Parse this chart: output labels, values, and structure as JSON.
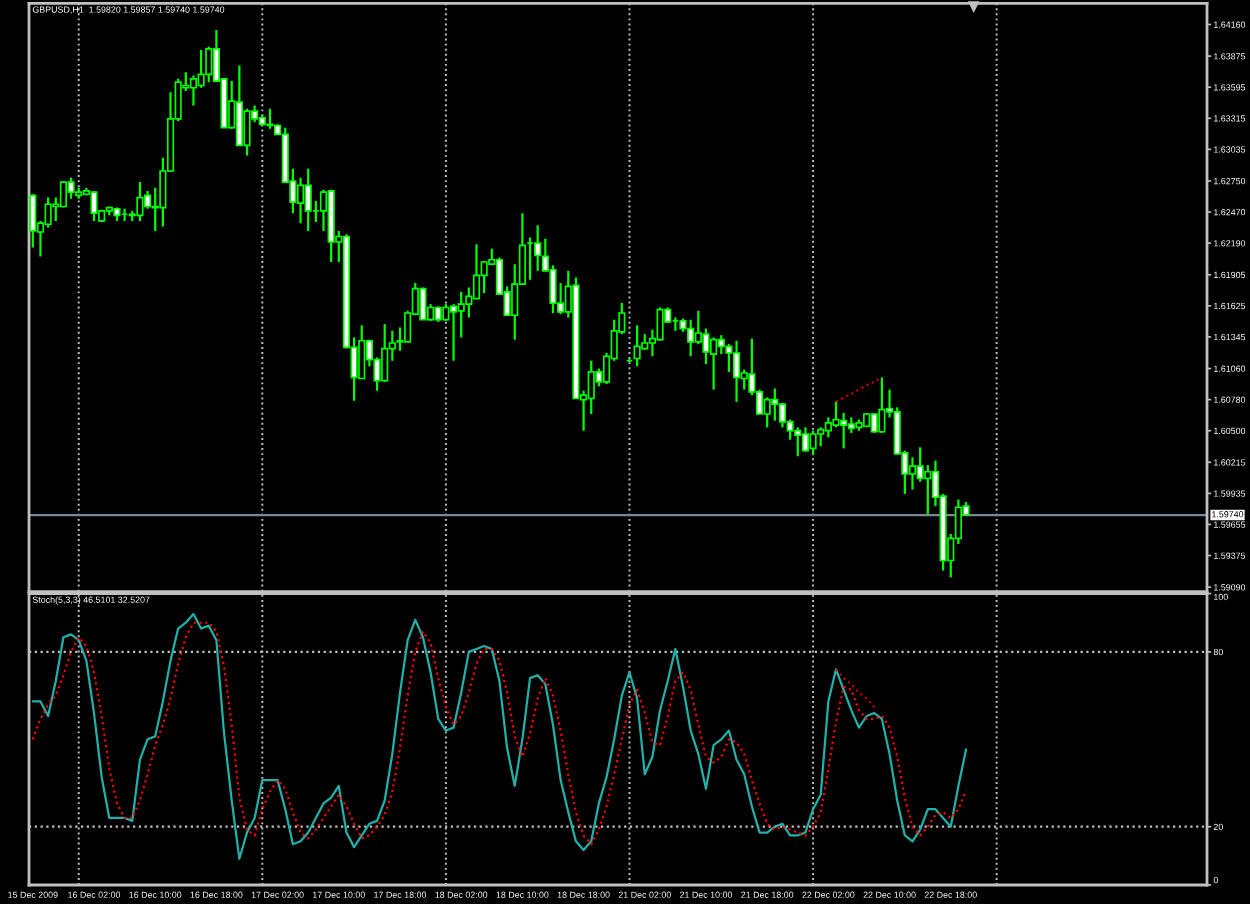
{
  "chart_data": [
    {
      "type": "candlestick",
      "title": "GBPUSD,H1  1.59820 1.59857 1.59740 1.59740",
      "categories": [
        null,
        null,
        null,
        null,
        null,
        null,
        null,
        null,
        null,
        null,
        null,
        null,
        null,
        null,
        null,
        null,
        null,
        null,
        null,
        null,
        null,
        null,
        null,
        null,
        null,
        null,
        null,
        null,
        null,
        null,
        null,
        null,
        null,
        null,
        null,
        null,
        null,
        null,
        null,
        null,
        null,
        null,
        null,
        null,
        null,
        null,
        null,
        null,
        null,
        null,
        null,
        null,
        null,
        null,
        null,
        null,
        null,
        null,
        null,
        null,
        null,
        null,
        null,
        null,
        null,
        null,
        null,
        null,
        null,
        null,
        null,
        null,
        null,
        null,
        null,
        null,
        null,
        null,
        null,
        null,
        null,
        null,
        null,
        null,
        null,
        null,
        null,
        null,
        null,
        null,
        null,
        null,
        null,
        null,
        null,
        null,
        null,
        null,
        null,
        null,
        null,
        null,
        null,
        null,
        null,
        null,
        null,
        null,
        null,
        null,
        null,
        null,
        null,
        null,
        null,
        null,
        null,
        null,
        null,
        null,
        null,
        null,
        null,
        null,
        null,
        null,
        null,
        null,
        null,
        null,
        null,
        null,
        null,
        null,
        null,
        null,
        null,
        null,
        null,
        null,
        null,
        null,
        null,
        null,
        null,
        null,
        null,
        null,
        null,
        null,
        null,
        null,
        null,
        null
      ],
      "ohlc": [
        [
          1.6262,
          1.6263,
          1.6215,
          1.623
        ],
        [
          1.6229,
          1.6239,
          1.6207,
          1.6237
        ],
        [
          1.6236,
          1.626,
          1.6233,
          1.6254
        ],
        [
          1.6252,
          1.626,
          1.6239,
          1.6254
        ],
        [
          1.6252,
          1.6275,
          1.6251,
          1.6274
        ],
        [
          1.6274,
          1.6278,
          1.6259,
          1.6265
        ],
        [
          1.6262,
          1.6269,
          1.6259,
          1.6265
        ],
        [
          1.6263,
          1.6269,
          1.6262,
          1.6266
        ],
        [
          1.6265,
          1.6266,
          1.6239,
          1.6246
        ],
        [
          1.6239,
          1.6249,
          1.6238,
          1.6248
        ],
        [
          1.6248,
          1.6252,
          1.6244,
          1.6251
        ],
        [
          1.625,
          1.6251,
          1.6239,
          1.6244
        ],
        [
          1.6245,
          1.625,
          1.6239,
          1.6245
        ],
        [
          1.6244,
          1.6248,
          1.6239,
          1.6245
        ],
        [
          1.6244,
          1.6274,
          1.6239,
          1.626
        ],
        [
          1.6262,
          1.6266,
          1.625,
          1.6252
        ],
        [
          1.6251,
          1.6269,
          1.623,
          1.6252
        ],
        [
          1.6251,
          1.6296,
          1.6234,
          1.6284
        ],
        [
          1.6284,
          1.6355,
          1.6283,
          1.6331
        ],
        [
          1.6331,
          1.6367,
          1.6329,
          1.6364
        ],
        [
          1.6359,
          1.6373,
          1.6356,
          1.6361
        ],
        [
          1.6359,
          1.637,
          1.6343,
          1.6367
        ],
        [
          1.6361,
          1.6393,
          1.6359,
          1.6371
        ],
        [
          1.6371,
          1.6396,
          1.6364,
          1.6394
        ],
        [
          1.6394,
          1.6411,
          1.6364,
          1.6365
        ],
        [
          1.6367,
          1.6368,
          1.6323,
          1.6323
        ],
        [
          1.6323,
          1.6365,
          1.6322,
          1.6347
        ],
        [
          1.6346,
          1.6379,
          1.6307,
          1.6307
        ],
        [
          1.6307,
          1.634,
          1.6298,
          1.6338
        ],
        [
          1.6338,
          1.6343,
          1.6328,
          1.6331
        ],
        [
          1.6332,
          1.6335,
          1.6325,
          1.6326
        ],
        [
          1.6326,
          1.634,
          1.6322,
          1.6325
        ],
        [
          1.6325,
          1.6326,
          1.6317,
          1.6317
        ],
        [
          1.6317,
          1.6323,
          1.6274,
          1.6274
        ],
        [
          1.6275,
          1.6286,
          1.6246,
          1.6256
        ],
        [
          1.6255,
          1.6278,
          1.6237,
          1.6271
        ],
        [
          1.6271,
          1.6286,
          1.623,
          1.6248
        ],
        [
          1.6248,
          1.6257,
          1.6238,
          1.6248
        ],
        [
          1.6248,
          1.6267,
          1.623,
          1.6265
        ],
        [
          1.6266,
          1.6267,
          1.6202,
          1.622
        ],
        [
          1.622,
          1.623,
          1.6202,
          1.6225
        ],
        [
          1.6225,
          1.6227,
          1.6124,
          1.6125
        ],
        [
          1.6125,
          1.6134,
          1.6077,
          1.6098
        ],
        [
          1.6097,
          1.6145,
          1.6097,
          1.6131
        ],
        [
          1.6131,
          1.6132,
          1.6108,
          1.6114
        ],
        [
          1.6114,
          1.6116,
          1.6086,
          1.6095
        ],
        [
          1.6095,
          1.6146,
          1.6094,
          1.6124
        ],
        [
          1.6124,
          1.614,
          1.6113,
          1.6129
        ],
        [
          1.613,
          1.6143,
          1.6122,
          1.6131
        ],
        [
          1.613,
          1.6158,
          1.613,
          1.6156
        ],
        [
          1.6155,
          1.6183,
          1.6154,
          1.6178
        ],
        [
          1.6178,
          1.6179,
          1.615,
          1.615
        ],
        [
          1.615,
          1.6164,
          1.6149,
          1.6161
        ],
        [
          1.6161,
          1.6162,
          1.6148,
          1.615
        ],
        [
          1.615,
          1.6164,
          1.6149,
          1.6161
        ],
        [
          1.6162,
          1.6164,
          1.6113,
          1.6157
        ],
        [
          1.6158,
          1.6175,
          1.6134,
          1.6164
        ],
        [
          1.6164,
          1.6179,
          1.6152,
          1.6171
        ],
        [
          1.6169,
          1.6218,
          1.6169,
          1.619
        ],
        [
          1.619,
          1.6203,
          1.6174,
          1.6202
        ],
        [
          1.62,
          1.6214,
          1.62,
          1.6204
        ],
        [
          1.6204,
          1.6206,
          1.6173,
          1.6173
        ],
        [
          1.6175,
          1.618,
          1.6154,
          1.6154
        ],
        [
          1.6154,
          1.62,
          1.6132,
          1.6182
        ],
        [
          1.6182,
          1.6246,
          1.6182,
          1.6217
        ],
        [
          1.6219,
          1.6224,
          1.6186,
          1.6219
        ],
        [
          1.6219,
          1.6235,
          1.6194,
          1.6208
        ],
        [
          1.6207,
          1.6223,
          1.6194,
          1.6194
        ],
        [
          1.6195,
          1.6199,
          1.6156,
          1.6165
        ],
        [
          1.6165,
          1.6183,
          1.6155,
          1.6157
        ],
        [
          1.6157,
          1.6194,
          1.6152,
          1.618
        ],
        [
          1.6181,
          1.6188,
          1.6079,
          1.6079
        ],
        [
          1.6078,
          1.6086,
          1.605,
          1.6082
        ],
        [
          1.6079,
          1.6113,
          1.6065,
          1.6103
        ],
        [
          1.6103,
          1.6106,
          1.609,
          1.6094
        ],
        [
          1.6094,
          1.612,
          1.6092,
          1.6117
        ],
        [
          1.6115,
          1.615,
          1.6113,
          1.614
        ],
        [
          1.6139,
          1.6165,
          1.6137,
          1.6156
        ],
        [
          1.6113,
          1.6115,
          1.6112,
          1.6113
        ],
        [
          1.6115,
          1.6145,
          1.6108,
          1.6126
        ],
        [
          1.6124,
          1.6137,
          1.6123,
          1.6129
        ],
        [
          1.6129,
          1.6141,
          1.6117,
          1.6133
        ],
        [
          1.6132,
          1.6161,
          1.6131,
          1.6159
        ],
        [
          1.6159,
          1.6161,
          1.6147,
          1.6148
        ],
        [
          1.6149,
          1.6152,
          1.614,
          1.6149
        ],
        [
          1.6149,
          1.6151,
          1.6139,
          1.6142
        ],
        [
          1.6142,
          1.615,
          1.6117,
          1.613
        ],
        [
          1.613,
          1.6158,
          1.6128,
          1.6138
        ],
        [
          1.6137,
          1.6142,
          1.611,
          1.6121
        ],
        [
          1.6119,
          1.6134,
          1.6087,
          1.6132
        ],
        [
          1.6132,
          1.6136,
          1.6119,
          1.6126
        ],
        [
          1.6126,
          1.6128,
          1.6103,
          1.612
        ],
        [
          1.612,
          1.6131,
          1.6076,
          1.6098
        ],
        [
          1.6097,
          1.6105,
          1.6087,
          1.6102
        ],
        [
          1.6101,
          1.6133,
          1.6082,
          1.6085
        ],
        [
          1.6085,
          1.6087,
          1.6065,
          1.6065
        ],
        [
          1.6065,
          1.608,
          1.6053,
          1.6078
        ],
        [
          1.6078,
          1.6088,
          1.6059,
          1.6074
        ],
        [
          1.6074,
          1.6075,
          1.6053,
          1.6058
        ],
        [
          1.6058,
          1.606,
          1.6042,
          1.605
        ],
        [
          1.605,
          1.6053,
          1.6027,
          1.6046
        ],
        [
          1.6047,
          1.6053,
          1.6031,
          1.6032
        ],
        [
          1.6034,
          1.605,
          1.6028,
          1.6047
        ],
        [
          1.6047,
          1.6053,
          1.6036,
          1.6051
        ],
        [
          1.605,
          1.6062,
          1.6044,
          1.6057
        ],
        [
          1.6055,
          1.6076,
          1.6053,
          1.606
        ],
        [
          1.6059,
          1.6066,
          1.6034,
          1.6055
        ],
        [
          1.6056,
          1.6062,
          1.6048,
          1.6052
        ],
        [
          1.6053,
          1.606,
          1.605,
          1.6057
        ],
        [
          1.6054,
          1.6066,
          1.6053,
          1.6065
        ],
        [
          1.6065,
          1.6066,
          1.6048,
          1.6049
        ],
        [
          1.6049,
          1.6098,
          1.6048,
          1.6069
        ],
        [
          1.607,
          1.6087,
          1.6062,
          1.6067
        ],
        [
          1.6067,
          1.6071,
          1.6029,
          1.6029
        ],
        [
          1.603,
          1.6032,
          1.5993,
          1.6011
        ],
        [
          1.6011,
          1.6026,
          1.5997,
          1.6018
        ],
        [
          1.6018,
          1.6035,
          1.6004,
          1.6007
        ],
        [
          1.6007,
          1.6019,
          1.5975,
          1.6013
        ],
        [
          1.6013,
          1.6023,
          1.5982,
          1.599
        ],
        [
          1.5991,
          1.5993,
          1.5924,
          1.5933
        ],
        [
          1.5933,
          1.5957,
          1.5918,
          1.5953
        ],
        [
          1.5953,
          1.5988,
          1.5948,
          1.5981
        ],
        [
          1.5982,
          1.59857,
          1.5974,
          1.5974
        ],
        null,
        null,
        null,
        null,
        null,
        null,
        null,
        null,
        null,
        null,
        null,
        null,
        null,
        null,
        null,
        null,
        null,
        null,
        null,
        null,
        null,
        null,
        null,
        null,
        null,
        null,
        null,
        null,
        null,
        null,
        null
      ],
      "color": "#00ff00",
      "colors": [
        "#ffffff",
        "#000000",
        "#000000",
        "#000000",
        "#000000",
        "#ffffff",
        "#000000",
        "#000000",
        "#ffffff",
        "#000000",
        "#000000",
        "#ffffff",
        "#00ff00",
        "#000000",
        "#000000",
        "#ffffff",
        "#000000",
        "#000000",
        "#000000",
        "#000000",
        "#000000",
        "#000000",
        "#000000",
        "#000000",
        "#ffffff",
        "#ffffff",
        "#000000",
        "#ffffff",
        "#000000",
        "#ffffff",
        "#ffffff",
        "#ffffff",
        "#ffffff",
        "#ffffff",
        "#ffffff",
        "#000000",
        "#ffffff",
        "#00ff00",
        "#000000",
        "#ffffff",
        "#000000",
        "#ffffff",
        "#ffffff",
        "#000000",
        "#ffffff",
        "#ffffff",
        "#000000",
        "#000000",
        "#000000",
        "#000000",
        "#000000",
        "#ffffff",
        "#000000",
        "#ffffff",
        "#000000",
        "#ffffff",
        "#000000",
        "#000000",
        "#000000",
        "#000000",
        "#000000",
        "#ffffff",
        "#ffffff",
        "#000000",
        "#000000",
        "#00ff00",
        "#ffffff",
        "#ffffff",
        "#ffffff",
        "#ffffff",
        "#000000",
        "#ffffff",
        "#000000",
        "#000000",
        "#ffffff",
        "#000000",
        "#000000",
        "#000000",
        "#00ff00",
        "#000000",
        "#000000",
        "#000000",
        "#000000",
        "#ffffff",
        "#00ff00",
        "#ffffff",
        "#ffffff",
        "#000000",
        "#ffffff",
        "#000000",
        "#ffffff",
        "#ffffff",
        "#ffffff",
        "#000000",
        "#ffffff",
        "#ffffff",
        "#000000",
        "#ffffff",
        "#ffffff",
        "#ffffff",
        "#ffffff",
        "#ffffff",
        "#000000",
        "#000000",
        "#000000",
        "#000000",
        "#ffffff",
        "#ffffff",
        "#000000",
        "#000000",
        "#ffffff",
        "#000000",
        "#ffffff",
        "#ffffff",
        "#ffffff",
        "#000000",
        "#ffffff",
        "#000000",
        "#ffffff",
        "#ffffff",
        "#000000",
        "#000000",
        "#ffffff",
        null,
        null,
        null,
        null,
        null,
        null,
        null,
        null,
        null,
        null,
        null,
        null,
        null,
        null,
        null,
        null,
        null,
        null,
        null,
        null,
        null,
        null,
        null,
        null,
        null,
        null,
        null,
        null,
        null,
        null,
        null
      ],
      "series": [
        {
          "type": "line",
          "color": "#c00000",
          "line_style": "dotted",
          "values": [
            null,
            null,
            null,
            null,
            null,
            null,
            null,
            null,
            null,
            null,
            null,
            null,
            null,
            null,
            null,
            null,
            null,
            null,
            null,
            null,
            null,
            null,
            null,
            null,
            null,
            null,
            null,
            null,
            null,
            null,
            null,
            null,
            null,
            null,
            null,
            null,
            null,
            null,
            null,
            null,
            null,
            null,
            null,
            null,
            null,
            null,
            null,
            null,
            null,
            null,
            null,
            null,
            null,
            null,
            null,
            null,
            null,
            null,
            null,
            null,
            null,
            null,
            null,
            null,
            null,
            null,
            null,
            null,
            null,
            null,
            null,
            null,
            null,
            null,
            null,
            null,
            null,
            null,
            null,
            null,
            null,
            null,
            null,
            null,
            null,
            null,
            null,
            null,
            null,
            null,
            null,
            null,
            null,
            null,
            null,
            null,
            null,
            null,
            null,
            null,
            null,
            null,
            null,
            null,
            null,
            1.6076,
            1.608,
            1.6083,
            1.6087,
            1.6091,
            1.6094,
            1.6098,
            null,
            null,
            null,
            null,
            null,
            null,
            null,
            null,
            null,
            null,
            null,
            null,
            null,
            null,
            null,
            null,
            null,
            null,
            null,
            null,
            null,
            null,
            null,
            null,
            null,
            null,
            null,
            null,
            null,
            null,
            null,
            null,
            null,
            null,
            null,
            null,
            null,
            null,
            null,
            null,
            null,
            null
          ]
        }
      ],
      "ylim": [
        1.5905,
        1.6435
      ],
      "yticks": [
        {
          "value": 1.6416,
          "label": "1.64160"
        },
        {
          "value": 1.63875,
          "label": "1.63875"
        },
        {
          "value": 1.63595,
          "label": "1.63595"
        },
        {
          "value": 1.63315,
          "label": "1.63315"
        },
        {
          "value": 1.63035,
          "label": "1.63035"
        },
        {
          "value": 1.6275,
          "label": "1.62750"
        },
        {
          "value": 1.6247,
          "label": "1.62470"
        },
        {
          "value": 1.6219,
          "label": "1.62190"
        },
        {
          "value": 1.61905,
          "label": "1.61905"
        },
        {
          "value": 1.61625,
          "label": "1.61625"
        },
        {
          "value": 1.61345,
          "label": "1.61345"
        },
        {
          "value": 1.6106,
          "label": "1.61060"
        },
        {
          "value": 1.6078,
          "label": "1.60780"
        },
        {
          "value": 1.605,
          "label": "1.60500"
        },
        {
          "value": 1.60215,
          "label": "1.60215"
        },
        {
          "value": 1.59935,
          "label": "1.59935"
        },
        {
          "value": 1.59655,
          "label": "1.59655"
        },
        {
          "value": 1.59375,
          "label": "1.59375"
        },
        {
          "value": 1.5909,
          "label": "1.59090"
        }
      ],
      "ref_lines": [
        {
          "axis": "y",
          "value": 1.5974,
          "label": "1.59740",
          "color": "#778899",
          "line_style": "solid"
        }
      ]
    },
    {
      "type": "line",
      "title": "Stoch(5,3,3) 46.5101 32.5207",
      "categories": [
        "15 Dec 2009",
        null,
        null,
        null,
        null,
        null,
        null,
        null,
        "16 Dec 02:00",
        null,
        null,
        null,
        null,
        null,
        null,
        null,
        "16 Dec 10:00",
        null,
        null,
        null,
        null,
        null,
        null,
        null,
        "16 Dec 18:00",
        null,
        null,
        null,
        null,
        null,
        null,
        null,
        "17 Dec 02:00",
        null,
        null,
        null,
        null,
        null,
        null,
        null,
        "17 Dec 10:00",
        null,
        null,
        null,
        null,
        null,
        null,
        null,
        "17 Dec 18:00",
        null,
        null,
        null,
        null,
        null,
        null,
        null,
        "18 Dec 02:00",
        null,
        null,
        null,
        null,
        null,
        null,
        null,
        "18 Dec 10:00",
        null,
        null,
        null,
        null,
        null,
        null,
        null,
        "18 Dec 18:00",
        null,
        null,
        null,
        null,
        null,
        null,
        null,
        "21 Dec 02:00",
        null,
        null,
        null,
        null,
        null,
        null,
        null,
        "21 Dec 10:00",
        null,
        null,
        null,
        null,
        null,
        null,
        null,
        "21 Dec 18:00",
        null,
        null,
        null,
        null,
        null,
        null,
        null,
        "22 Dec 02:00",
        null,
        null,
        null,
        null,
        null,
        null,
        null,
        "22 Dec 10:00",
        null,
        null,
        null,
        null,
        null,
        null,
        null,
        "22 Dec 18:00",
        null,
        null,
        null,
        null,
        null,
        null,
        null,
        null,
        null,
        null,
        null,
        null,
        null,
        null,
        null,
        null,
        null,
        null,
        null,
        null,
        null,
        null,
        null,
        null,
        null,
        null,
        null,
        null,
        null,
        null,
        null,
        null,
        null
      ],
      "series": [
        {
          "color": "#20b2aa",
          "line_style": "solid",
          "values": [
            63,
            63,
            58,
            70,
            85,
            86,
            84,
            77,
            59,
            37,
            23,
            23,
            23,
            22,
            43,
            50,
            51,
            63,
            77,
            88,
            90,
            93,
            88,
            89,
            84,
            52,
            29,
            9,
            18,
            23,
            36,
            36,
            36,
            26,
            14,
            15,
            18,
            23,
            28,
            30,
            34,
            18,
            13,
            17,
            21,
            22,
            29,
            45,
            66,
            84,
            91,
            85,
            73,
            57,
            53,
            54,
            66,
            80,
            81,
            82,
            81,
            70,
            47,
            34,
            50,
            71,
            72,
            69,
            55,
            36,
            25,
            15,
            12,
            15,
            28,
            37,
            50,
            65,
            73,
            64,
            38,
            44,
            60,
            70,
            81,
            68,
            53,
            45,
            33,
            48,
            50,
            53,
            43,
            38,
            27,
            18,
            18,
            20,
            21,
            17,
            17,
            18,
            26,
            31,
            63,
            74,
            67,
            60,
            54,
            58,
            59,
            57,
            45,
            29,
            17,
            15,
            19,
            26,
            26,
            23,
            20,
            34,
            46.5,
            null,
            null,
            null,
            null,
            null,
            null,
            null,
            null,
            null,
            null,
            null,
            null,
            null,
            null,
            null,
            null,
            null,
            null,
            null,
            null,
            null,
            null,
            null,
            null,
            null,
            null,
            null,
            null,
            null,
            null,
            null
          ]
        },
        {
          "color": "#ff0000",
          "line_style": "dotted",
          "values": [
            50,
            57,
            62,
            65,
            72,
            80,
            85,
            82,
            73,
            58,
            40,
            28,
            23,
            23,
            29,
            38,
            48,
            55,
            64,
            76,
            85,
            90,
            90,
            90,
            87,
            75,
            55,
            30,
            19,
            17,
            26,
            32,
            36,
            33,
            25,
            18,
            16,
            19,
            23,
            27,
            31,
            27,
            21,
            16,
            17,
            20,
            24,
            32,
            47,
            65,
            80,
            87,
            83,
            71,
            61,
            55,
            58,
            66,
            76,
            81,
            81,
            77,
            66,
            51,
            44,
            52,
            64,
            71,
            65,
            53,
            38,
            25,
            17,
            14,
            19,
            27,
            38,
            50,
            62,
            67,
            59,
            49,
            48,
            58,
            70,
            73,
            67,
            55,
            44,
            42,
            44,
            50,
            49,
            45,
            36,
            28,
            21,
            19,
            20,
            19,
            18,
            17,
            20,
            25,
            40,
            56,
            68,
            67,
            60,
            57,
            57,
            58,
            54,
            44,
            30,
            20,
            17,
            20,
            24,
            25,
            23,
            26,
            32.5,
            null,
            null,
            null,
            null,
            null,
            null,
            null,
            null,
            null,
            null,
            null,
            null,
            null,
            null,
            null,
            null,
            null,
            null,
            null,
            null,
            null,
            null,
            null,
            null,
            null,
            null,
            null,
            null,
            null,
            null,
            null
          ]
        },
        {
          "color": "#c00000",
          "line_style": "dotted",
          "values": [
            null,
            null,
            null,
            null,
            null,
            null,
            null,
            null,
            null,
            null,
            null,
            null,
            null,
            null,
            null,
            null,
            null,
            null,
            null,
            null,
            null,
            null,
            null,
            null,
            null,
            null,
            null,
            null,
            null,
            null,
            null,
            null,
            null,
            null,
            null,
            null,
            null,
            null,
            null,
            null,
            null,
            null,
            null,
            null,
            null,
            null,
            null,
            null,
            null,
            null,
            null,
            null,
            null,
            null,
            null,
            null,
            null,
            null,
            null,
            null,
            null,
            null,
            null,
            null,
            null,
            null,
            null,
            null,
            null,
            null,
            null,
            null,
            null,
            null,
            null,
            null,
            null,
            null,
            null,
            null,
            null,
            null,
            null,
            null,
            null,
            null,
            null,
            null,
            null,
            null,
            null,
            null,
            null,
            null,
            null,
            null,
            null,
            null,
            null,
            null,
            null,
            null,
            null,
            null,
            null,
            74,
            71,
            69,
            66,
            64,
            61,
            null,
            null,
            null,
            null,
            null,
            null,
            null,
            null,
            null,
            null,
            null,
            null,
            null,
            null,
            null,
            null,
            null,
            null,
            null,
            null,
            null,
            null,
            null,
            null,
            null,
            null,
            null,
            null,
            null,
            null,
            null,
            null,
            null,
            null,
            null,
            null,
            null,
            null,
            null,
            null,
            null,
            null,
            null
          ]
        }
      ],
      "ylim": [
        0,
        100
      ],
      "yticks": [
        0,
        20,
        80,
        100
      ],
      "ref_lines": [
        {
          "axis": "y",
          "value": 20,
          "color": "#c0c0c0",
          "line_style": "dotted"
        },
        {
          "axis": "y",
          "value": 80,
          "color": "#c0c0c0",
          "line_style": "dotted"
        }
      ]
    }
  ]
}
